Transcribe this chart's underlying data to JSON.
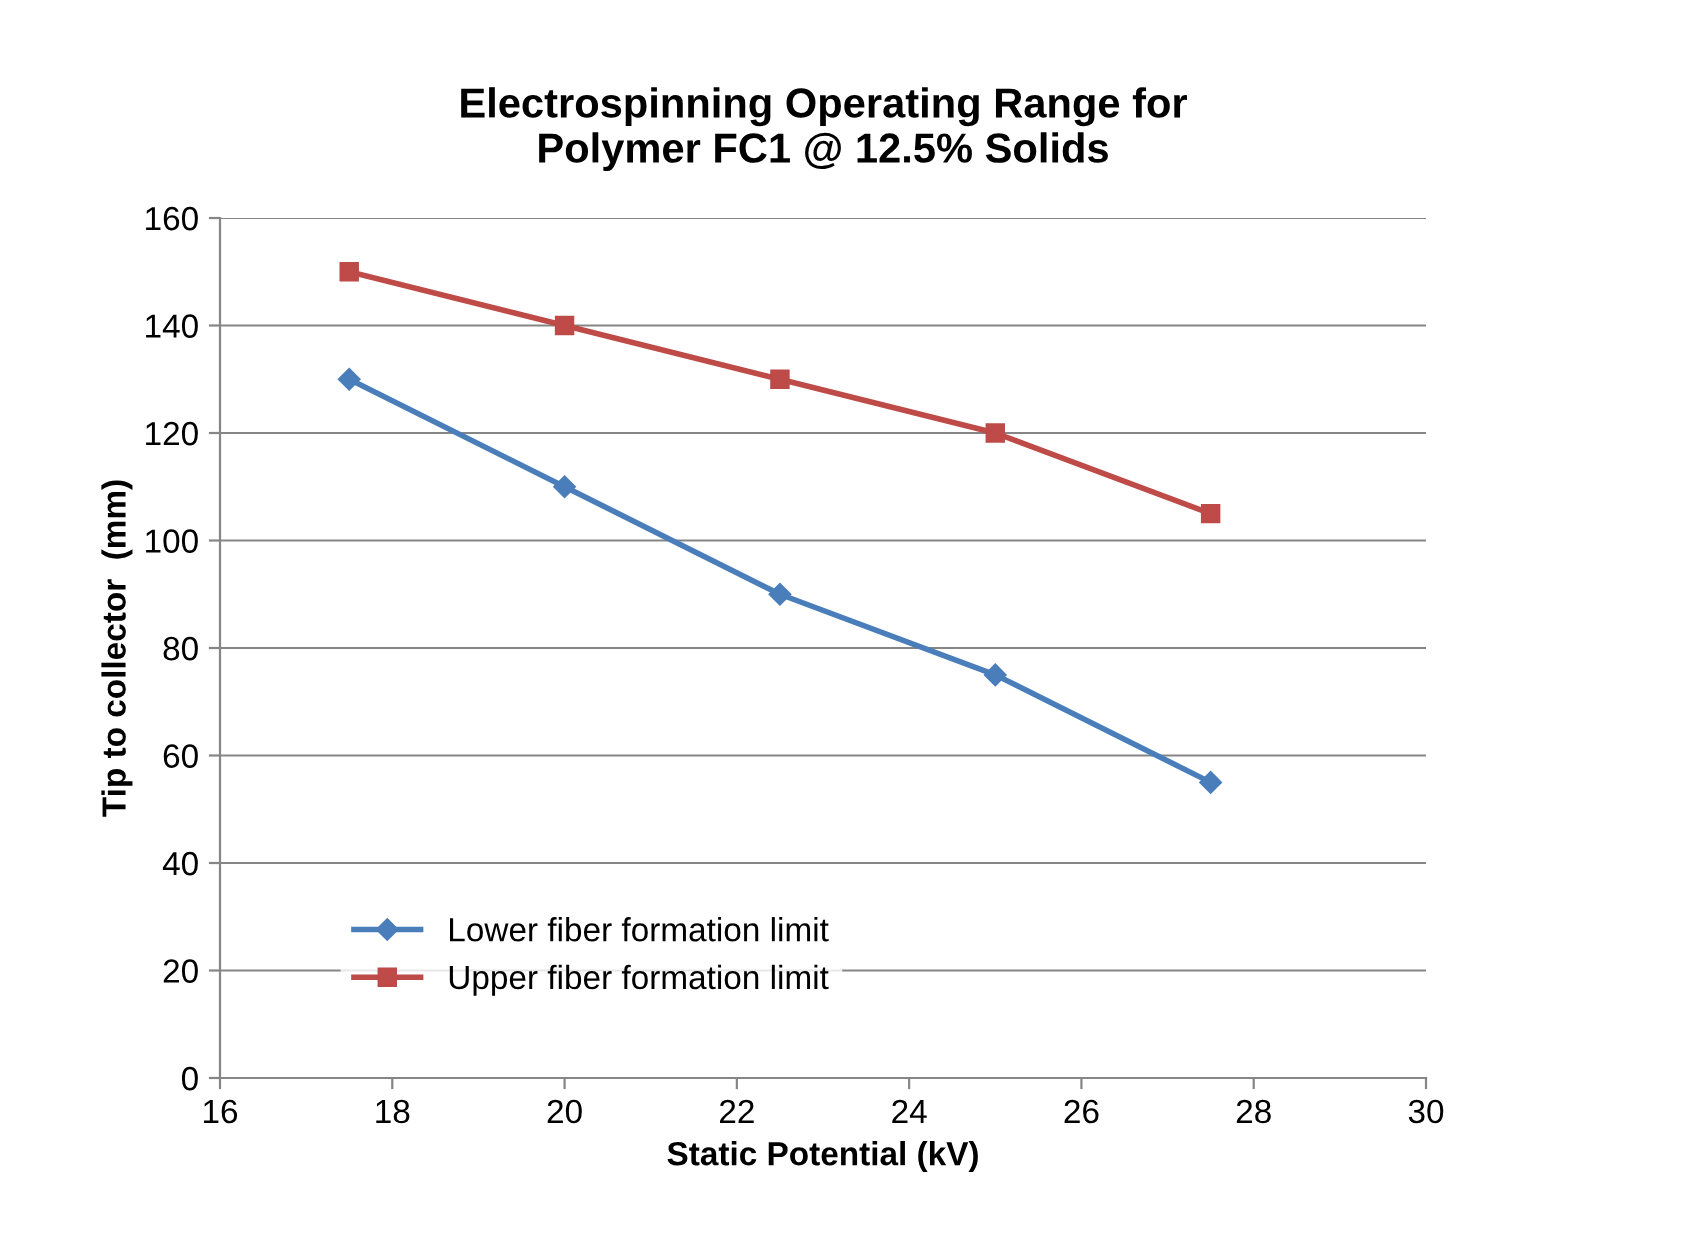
{
  "chart_data": {
    "type": "line",
    "title": "Electrospinning Operating Range for\nPolymer FC1 @ 12.5% Solids",
    "xlabel": "Static Potential (kV)",
    "ylabel": "Tip to collector  (mm)",
    "x": [
      17.5,
      20,
      22.5,
      25,
      27.5
    ],
    "series": [
      {
        "name": "Lower fiber formation limit",
        "color": "#4a7ebb",
        "marker": "diamond",
        "values": [
          130,
          110,
          90,
          75,
          55
        ]
      },
      {
        "name": "Upper fiber formation limit",
        "color": "#be4b48",
        "marker": "square",
        "values": [
          150,
          140,
          130,
          120,
          105
        ]
      }
    ],
    "xlim": [
      16,
      30
    ],
    "xticks": [
      16,
      18,
      20,
      22,
      24,
      26,
      28,
      30
    ],
    "ylim": [
      0,
      160
    ],
    "yticks": [
      0,
      20,
      40,
      60,
      80,
      100,
      120,
      140,
      160
    ],
    "grid": "y",
    "legend": "bottom left",
    "line_style": "solid"
  }
}
